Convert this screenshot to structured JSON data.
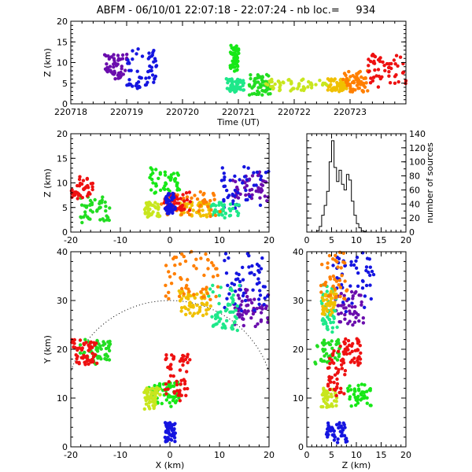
{
  "chart_data": {
    "title": "ABFM - 06/10/01 22:07:18 - 22:07:24 - nb loc.=     934",
    "panels": [
      {
        "id": "time-height",
        "type": "scatter",
        "xlabel": "Time (UT)",
        "ylabel": "Z (km)",
        "xlim": [
          220718,
          220724
        ],
        "ylim": [
          0,
          20
        ],
        "xticks": [
          "220718",
          "220719",
          "220720",
          "220721",
          "220722",
          "220723"
        ],
        "yticks": [
          "0",
          "5",
          "10",
          "15",
          "20"
        ],
        "clusters": [
          {
            "color": "#6a0dad",
            "x": [
              220718.6,
              220719.0
            ],
            "y": [
              6,
              12
            ]
          },
          {
            "color": "#1515e0",
            "x": [
              220719.0,
              220719.55
            ],
            "y": [
              4,
              13
            ]
          },
          {
            "color": "#17e817",
            "x": [
              220720.85,
              220721.0
            ],
            "y": [
              8,
              14
            ]
          },
          {
            "color": "#1ee88a",
            "x": [
              220720.8,
              220721.1
            ],
            "y": [
              3,
              6
            ]
          },
          {
            "color": "#22dd22",
            "x": [
              220721.2,
              220721.6
            ],
            "y": [
              2,
              7
            ]
          },
          {
            "color": "#c8e61e",
            "x": [
              220721.5,
              220722.6
            ],
            "y": [
              3,
              6
            ]
          },
          {
            "color": "#f0c000",
            "x": [
              220722.6,
              220723.0
            ],
            "y": [
              3,
              6
            ]
          },
          {
            "color": "#ff7f00",
            "x": [
              220722.9,
              220723.3
            ],
            "y": [
              3,
              8
            ]
          },
          {
            "color": "#ee1111",
            "x": [
              220723.3,
              220724.0
            ],
            "y": [
              4,
              12
            ]
          }
        ]
      },
      {
        "id": "x-height",
        "type": "scatter",
        "xlabel": "",
        "ylabel": "Z (km)",
        "xlim": [
          -20,
          20
        ],
        "ylim": [
          0,
          20
        ],
        "xticks": [
          "-20",
          "-10",
          "0",
          "10",
          "20"
        ],
        "yticks": [
          "0",
          "5",
          "10",
          "15",
          "20"
        ]
      },
      {
        "id": "histogram",
        "type": "bar",
        "xlabel": "",
        "ylabel": "number of sources",
        "xlim": [
          0,
          20
        ],
        "ylim": [
          0,
          140
        ],
        "xticks": [
          "0",
          "5",
          "10",
          "15",
          "20"
        ],
        "yticks": [
          "0",
          "20",
          "40",
          "60",
          "80",
          "100",
          "120",
          "140"
        ],
        "bin_width": 0.5,
        "bin_start": 0,
        "values": [
          0,
          0,
          0,
          0,
          2,
          8,
          24,
          38,
          58,
          100,
          130,
          92,
          72,
          88,
          68,
          60,
          82,
          74,
          44,
          24,
          12,
          6,
          2,
          1,
          0,
          0,
          0,
          0,
          0,
          0,
          0,
          0,
          0,
          0,
          0,
          0,
          0,
          0,
          0,
          0
        ]
      },
      {
        "id": "plan-view",
        "type": "scatter",
        "xlabel": "X (km)",
        "ylabel": "Y (km)",
        "xlim": [
          -20,
          20
        ],
        "ylim": [
          0,
          40
        ],
        "xticks": [
          "-20",
          "-10",
          "0",
          "10",
          "20"
        ],
        "yticks": [
          "0",
          "10",
          "20",
          "30",
          "40"
        ]
      },
      {
        "id": "z-y",
        "type": "scatter",
        "xlabel": "Z (km)",
        "ylabel": "",
        "xlim": [
          0,
          20
        ],
        "ylim": [
          0,
          40
        ],
        "xticks": [
          "0",
          "5",
          "10",
          "15",
          "20"
        ],
        "yticks": [
          "0",
          "10",
          "20",
          "30",
          "40"
        ]
      }
    ],
    "spatial_clusters": [
      {
        "color": "#6a0dad",
        "x": [
          13,
          20
        ],
        "y": [
          25,
          32
        ],
        "z": [
          6,
          12
        ]
      },
      {
        "color": "#1515e0",
        "x": [
          10,
          20
        ],
        "y": [
          28,
          40
        ],
        "z": [
          5,
          14
        ]
      },
      {
        "color": "#17e817",
        "x": [
          -4,
          2
        ],
        "y": [
          8,
          13
        ],
        "z": [
          8,
          13
        ]
      },
      {
        "color": "#1ee88a",
        "x": [
          8,
          14
        ],
        "y": [
          24,
          33
        ],
        "z": [
          3,
          6
        ]
      },
      {
        "color": "#22dd22",
        "x": [
          -18,
          -12
        ],
        "y": [
          17,
          22
        ],
        "z": [
          2,
          7
        ]
      },
      {
        "color": "#c8e61e",
        "x": [
          -5,
          -2
        ],
        "y": [
          8,
          12
        ],
        "z": [
          3,
          6
        ]
      },
      {
        "color": "#f0c000",
        "x": [
          2,
          8
        ],
        "y": [
          27,
          32
        ],
        "z": [
          3,
          6
        ]
      },
      {
        "color": "#ff7f00",
        "x": [
          -1,
          10
        ],
        "y": [
          30,
          40
        ],
        "z": [
          3,
          8
        ]
      },
      {
        "color": "#ee1111",
        "x": [
          -20,
          -15
        ],
        "y": [
          17,
          22
        ],
        "z": [
          7,
          11
        ]
      },
      {
        "color": "#ee1111",
        "x": [
          -1,
          4
        ],
        "y": [
          10,
          20
        ],
        "z": [
          4,
          8
        ]
      },
      {
        "color": "#1515e0",
        "x": [
          -1,
          1
        ],
        "y": [
          1,
          5
        ],
        "z": [
          4,
          8
        ]
      }
    ]
  }
}
